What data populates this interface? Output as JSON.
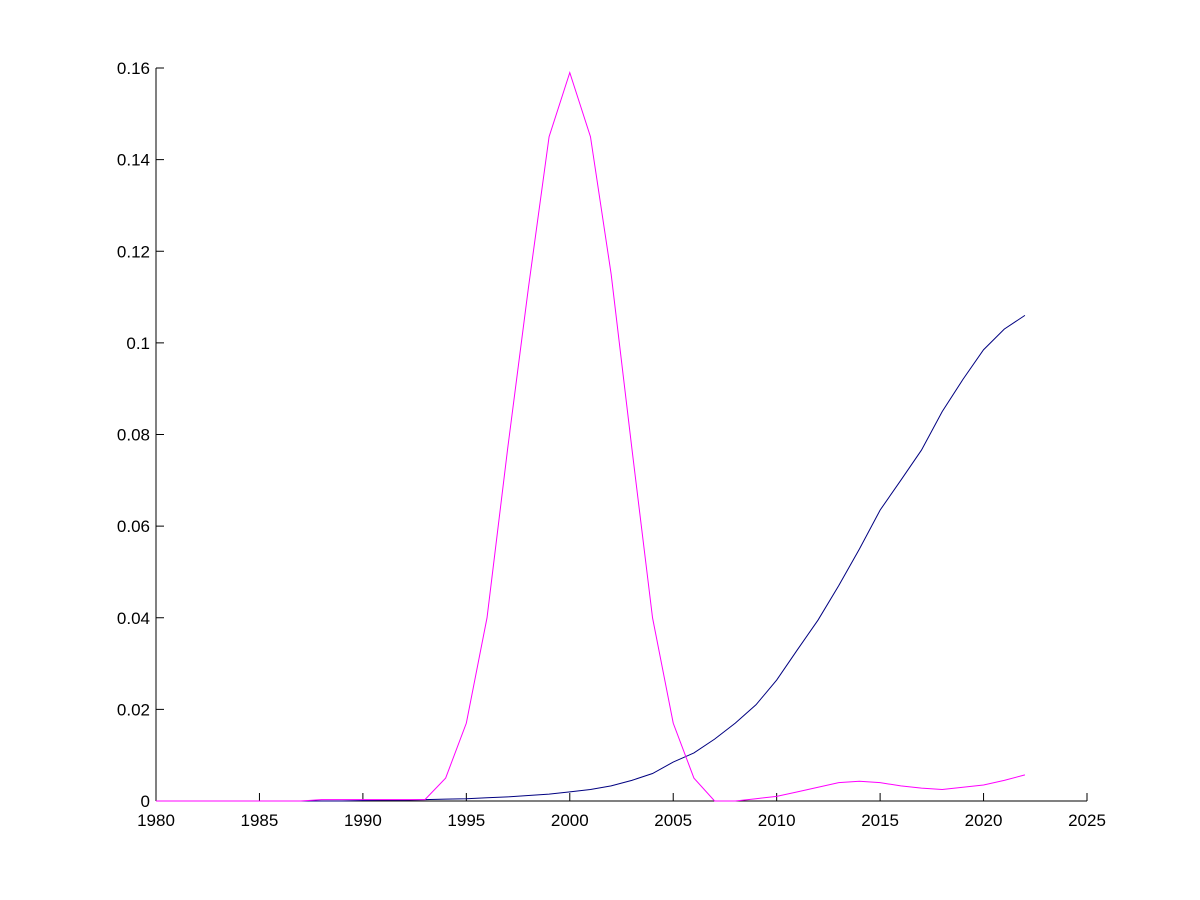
{
  "chart_data": {
    "type": "line",
    "x": [
      1980,
      1981,
      1982,
      1983,
      1984,
      1985,
      1986,
      1987,
      1988,
      1989,
      1990,
      1991,
      1992,
      1993,
      1994,
      1995,
      1996,
      1997,
      1998,
      1999,
      2000,
      2001,
      2002,
      2003,
      2004,
      2005,
      2006,
      2007,
      2008,
      2009,
      2010,
      2011,
      2012,
      2013,
      2014,
      2015,
      2016,
      2017,
      2018,
      2019,
      2020,
      2021,
      2022
    ],
    "series": [
      {
        "color": "#000080",
        "values": [
          0,
          0,
          0,
          0,
          0,
          0,
          0,
          0,
          0,
          0,
          0.0001,
          0.0002,
          0.0002,
          0.0003,
          0.0004,
          0.0005,
          0.0007,
          0.0009,
          0.0012,
          0.0015,
          0.002,
          0.0025,
          0.0033,
          0.0045,
          0.006,
          0.0085,
          0.0105,
          0.0135,
          0.017,
          0.021,
          0.0264,
          0.033,
          0.0395,
          0.047,
          0.055,
          0.0635,
          0.07,
          0.0766,
          0.085,
          0.092,
          0.0985,
          0.103,
          0.106
        ]
      },
      {
        "color": "#ff00ff",
        "values": [
          0,
          0,
          0,
          0,
          0,
          0,
          0,
          0,
          0.0003,
          0.0003,
          0.0003,
          0.0003,
          0.0003,
          0.0003,
          0.005,
          0.017,
          0.04,
          0.077,
          0.112,
          0.145,
          0.159,
          0.145,
          0.115,
          0.077,
          0.04,
          0.017,
          0.005,
          0,
          0,
          0.0005,
          0.001,
          0.002,
          0.003,
          0.004,
          0.0043,
          0.004,
          0.0033,
          0.0028,
          0.0025,
          0.003,
          0.0035,
          0.0045,
          0.0057
        ]
      }
    ],
    "xlim": [
      1980,
      2025
    ],
    "xticks": [
      1980,
      1985,
      1990,
      1995,
      2000,
      2005,
      2010,
      2015,
      2020,
      2025
    ],
    "ylim": [
      0,
      0.16
    ],
    "yticks": [
      0,
      0.02,
      0.04,
      0.06,
      0.08,
      0.1,
      0.12,
      0.14,
      0.16
    ]
  }
}
